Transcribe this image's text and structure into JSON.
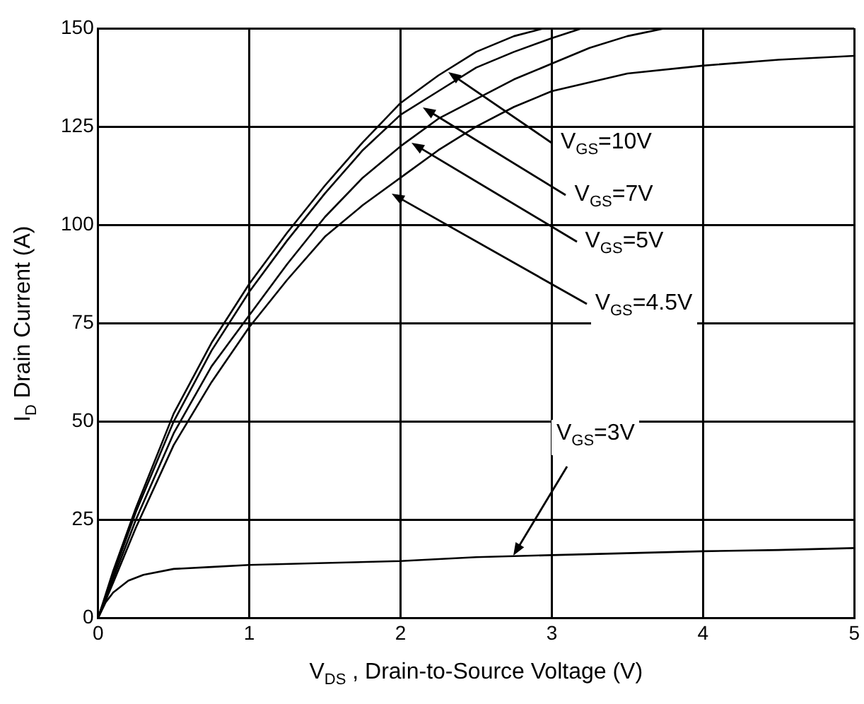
{
  "chart_data": {
    "type": "line",
    "xlabel": "V$_{DS}$ , Drain-to-Source Voltage (V)",
    "ylabel": "I$_{D}$ Drain Current (A)",
    "xlim": [
      0,
      5
    ],
    "xticks": [
      0,
      1,
      2,
      3,
      4,
      5
    ],
    "ylim": [
      0,
      150
    ],
    "yticks": [
      0,
      25,
      50,
      75,
      100,
      125,
      150
    ],
    "grid": true,
    "legend": false,
    "marker": "none",
    "line_style": "solid",
    "series": [
      {
        "color": "#000000",
        "x": [
          0,
          0.1,
          0.25,
          0.5,
          0.75,
          1,
          1.25,
          1.5,
          1.75,
          2,
          2.25,
          2.5,
          2.75,
          2.95
        ],
        "values": [
          0,
          12,
          28,
          52,
          70,
          85,
          98,
          110,
          121,
          131,
          138,
          144,
          148,
          150
        ]
      },
      {
        "color": "#000000",
        "x": [
          0,
          0.1,
          0.25,
          0.5,
          0.75,
          1,
          1.25,
          1.5,
          1.75,
          2,
          2.25,
          2.5,
          2.75,
          3,
          3.2
        ],
        "values": [
          0,
          11,
          27,
          50,
          68,
          83,
          96,
          108,
          119,
          128,
          134,
          140,
          144,
          147.5,
          150
        ]
      },
      {
        "color": "#000000",
        "x": [
          0,
          0.1,
          0.25,
          0.5,
          0.75,
          1,
          1.25,
          1.5,
          1.75,
          2,
          2.25,
          2.5,
          2.75,
          3,
          3.25,
          3.5,
          3.75
        ],
        "values": [
          0,
          10,
          25,
          47,
          64,
          77,
          90,
          102,
          112,
          120,
          127,
          132,
          137,
          141,
          145,
          148,
          150
        ]
      },
      {
        "color": "#000000",
        "x": [
          0,
          0.1,
          0.25,
          0.5,
          0.75,
          1,
          1.25,
          1.5,
          1.75,
          2,
          2.25,
          2.5,
          2.75,
          3,
          3.5,
          4,
          4.5,
          5
        ],
        "values": [
          0,
          9,
          23,
          44,
          60,
          74,
          86,
          97,
          105,
          112,
          119,
          125,
          130,
          134,
          138.5,
          140.5,
          142,
          143
        ]
      },
      {
        "color": "#000000",
        "x": [
          0,
          0.05,
          0.1,
          0.2,
          0.3,
          0.5,
          0.75,
          1,
          1.5,
          2,
          2.5,
          3,
          3.5,
          4,
          4.5,
          5
        ],
        "values": [
          0,
          4,
          6.5,
          9.5,
          11,
          12.5,
          13,
          13.5,
          14,
          14.5,
          15.5,
          16,
          16.5,
          17,
          17.3,
          17.8
        ]
      }
    ],
    "annotations": [
      {
        "text": "V$_{GS}$=10V",
        "x": 2.32,
        "y": 139
      },
      {
        "text": "V$_{GS}$=7V",
        "x": 2.15,
        "y": 130
      },
      {
        "text": "V$_{GS}$=5V",
        "x": 2.07,
        "y": 121
      },
      {
        "text": "V$_{GS}$=4.5V",
        "x": 1.94,
        "y": 108
      },
      {
        "text": "V$_{GS}$=3V",
        "x": 2.75,
        "y": 16
      }
    ]
  }
}
